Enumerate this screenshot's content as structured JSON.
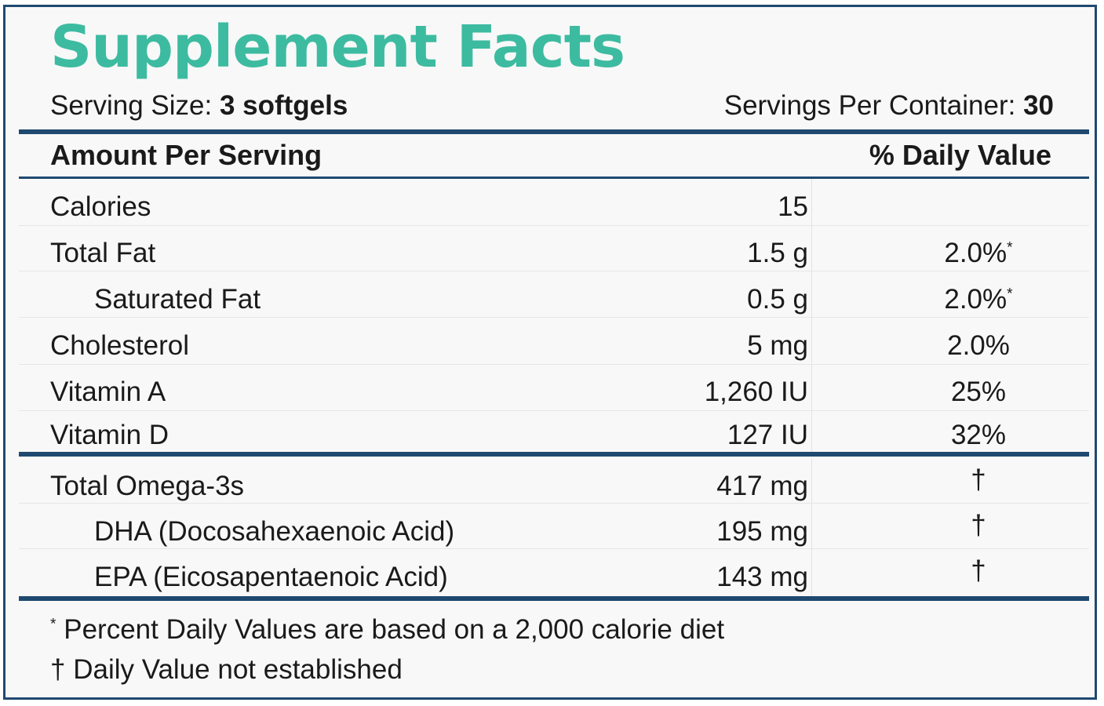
{
  "label": {
    "title": "Supplement Facts",
    "serving_size_label": "Serving Size:",
    "serving_size_value": "3 softgels",
    "servings_per_container_label": "Servings Per Container:",
    "servings_per_container_value": "30",
    "amount_header": "Amount Per Serving",
    "dv_header": "% Daily Value",
    "rows": [
      {
        "name": "Calories",
        "amount": "15",
        "dv": ""
      },
      {
        "name": "Total Fat",
        "amount": "1.5 g",
        "dv": "2.0%",
        "dv_mark": "*"
      },
      {
        "name": "Saturated Fat",
        "amount": "0.5 g",
        "dv": "2.0%",
        "dv_mark": "*"
      },
      {
        "name": "Cholesterol",
        "amount": "5 mg",
        "dv": "2.0%"
      },
      {
        "name": "Vitamin A",
        "amount": "1,260 IU",
        "dv": "25%"
      },
      {
        "name": "Vitamin D",
        "amount": "127 IU",
        "dv": "32%"
      },
      {
        "name": "Total Omega-3s",
        "amount": "417 mg",
        "dv": "†"
      },
      {
        "name": "DHA (Docosahexaenoic Acid)",
        "amount": "195 mg",
        "dv": "†"
      },
      {
        "name": "EPA (Eicosapentaenoic Acid)",
        "amount": "143 mg",
        "dv": "†"
      }
    ],
    "footnote_1_mark": "*",
    "footnote_1": "Percent Daily Values are based on a 2,000 calorie diet",
    "footnote_2_mark": "†",
    "footnote_2": "Daily Value not established"
  },
  "colors": {
    "title": "#3dbba0",
    "rule": "#1f4970",
    "text": "#1a1a1a",
    "background": "#f8f8f8"
  }
}
